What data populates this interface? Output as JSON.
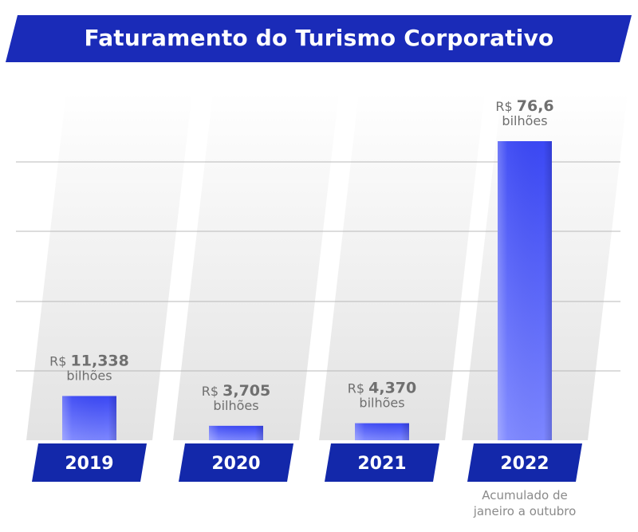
{
  "title": "Faturamento do Turismo Corporativo",
  "colors": {
    "banner": "#1a2bb8",
    "bar_top": "#3b48f4",
    "bar_bottom": "#7c86ff",
    "year_box": "#1328aa",
    "text": "#6f6f6f"
  },
  "chart_data": {
    "type": "bar",
    "title": "Faturamento do Turismo Corporativo",
    "xlabel": "",
    "ylabel": "",
    "grid": true,
    "categories": [
      "2019",
      "2020",
      "2021",
      "2022"
    ],
    "series": [
      {
        "values": [
          11.338,
          3.705,
          4.37,
          76.6
        ]
      }
    ],
    "ylim": [
      0,
      80
    ],
    "data_labels": [
      {
        "prefix": "R$",
        "number": "11,338",
        "unit": "bilhões"
      },
      {
        "prefix": "R$",
        "number": "3,705",
        "unit": "bilhões"
      },
      {
        "prefix": "R$",
        "number": "4,370",
        "unit": "bilhões"
      },
      {
        "prefix": "R$",
        "number": "76,6",
        "unit": "bilhões"
      }
    ],
    "annotation": "Acumulado de janeiro a outubro"
  },
  "footnote": {
    "line1": "Acumulado de",
    "line2": "janeiro a outubro"
  }
}
